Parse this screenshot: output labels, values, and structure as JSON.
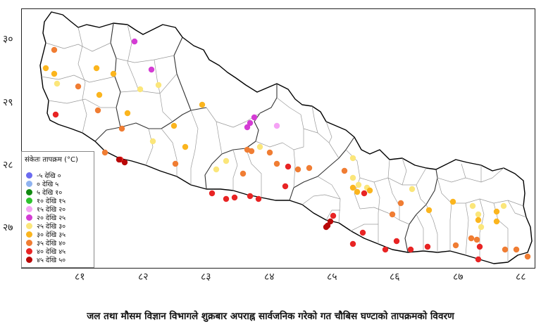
{
  "map": {
    "y_ticks": [
      "३०",
      "२९",
      "२८",
      "२७"
    ],
    "x_ticks": [
      "८१",
      "८२",
      "८३",
      "८४",
      "८५",
      "८६",
      "८७",
      "८८"
    ],
    "colors": {
      "border": "#000000",
      "district": "#9a9a9a",
      "zone": "#333333"
    }
  },
  "legend": {
    "title": "संकेतः तापक्रम (°C)",
    "items": [
      {
        "label": "-५  देखि  ०",
        "color": "#6b6bf0"
      },
      {
        "label": "०  देखि  ५",
        "color": "#8fb3f0"
      },
      {
        "label": "५  देखि  १०",
        "color": "#118a11"
      },
      {
        "label": "१०  देखि  १५",
        "color": "#2ec42e"
      },
      {
        "label": "१५  देखि  २०",
        "color": "#f5a3f5"
      },
      {
        "label": "२०  देखि  २५",
        "color": "#d43cd4"
      },
      {
        "label": "२५  देखि  ३०",
        "color": "#fbe67a"
      },
      {
        "label": "३०  देखि  ३५",
        "color": "#fbb51e"
      },
      {
        "label": "३५  देखि  ४०",
        "color": "#f07d33"
      },
      {
        "label": "४०  देखि  ४५",
        "color": "#e82424"
      },
      {
        "label": "४५  देखि  ५०",
        "color": "#b80808"
      }
    ]
  },
  "stations_note": "dots colored by temperature class index into legend.items",
  "caption": "जल तथा मौसम विज्ञान विभागले शुक्रबार अपराह्न सार्वजनिक गरेको गत चौबिस घण्टाको तापक्रमको विवरण"
}
